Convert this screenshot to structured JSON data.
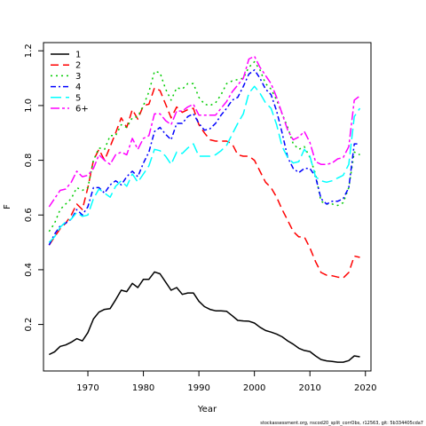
{
  "chart_data": {
    "type": "line",
    "xlabel": "Year",
    "ylabel": "F",
    "xlim": [
      1962,
      2021
    ],
    "ylim": [
      0.03,
      1.23
    ],
    "x_ticks": [
      1970,
      1980,
      1990,
      2000,
      2010,
      2020
    ],
    "y_ticks": [
      0.2,
      0.4,
      0.6,
      0.8,
      1.0,
      1.2
    ],
    "y_tick_labels": [
      "0.2",
      "0.4",
      "0.6",
      "0.8",
      "1.0",
      "1.2"
    ],
    "legend_position": "top-left",
    "footnote": "stockassessment.org, nscod20_split_corrObs, r12563, git: 5b334405cda7",
    "x": [
      1963,
      1964,
      1965,
      1966,
      1967,
      1968,
      1969,
      1970,
      1971,
      1972,
      1973,
      1974,
      1975,
      1976,
      1977,
      1978,
      1979,
      1980,
      1981,
      1982,
      1983,
      1984,
      1985,
      1986,
      1987,
      1988,
      1989,
      1990,
      1991,
      1992,
      1993,
      1994,
      1995,
      1996,
      1997,
      1998,
      1999,
      2000,
      2001,
      2002,
      2003,
      2004,
      2005,
      2006,
      2007,
      2008,
      2009,
      2010,
      2011,
      2012,
      2013,
      2014,
      2015,
      2016,
      2017,
      2018,
      2019
    ],
    "series": [
      {
        "name": "1",
        "color": "#000000",
        "dash": "solid",
        "values": [
          0.09,
          0.1,
          0.12,
          0.125,
          0.135,
          0.148,
          0.14,
          0.17,
          0.22,
          0.245,
          0.255,
          0.258,
          0.29,
          0.325,
          0.32,
          0.35,
          0.335,
          0.365,
          0.365,
          0.392,
          0.385,
          0.355,
          0.325,
          0.335,
          0.31,
          0.315,
          0.315,
          0.285,
          0.265,
          0.255,
          0.25,
          0.25,
          0.248,
          0.232,
          0.215,
          0.213,
          0.212,
          0.205,
          0.19,
          0.178,
          0.172,
          0.165,
          0.155,
          0.14,
          0.128,
          0.113,
          0.105,
          0.101,
          0.085,
          0.072,
          0.067,
          0.065,
          0.062,
          0.062,
          0.068,
          0.085,
          0.082
        ]
      },
      {
        "name": "2",
        "color": "#ff0000",
        "dash": "9,5",
        "values": [
          0.49,
          0.52,
          0.55,
          0.57,
          0.6,
          0.64,
          0.62,
          0.7,
          0.8,
          0.84,
          0.8,
          0.85,
          0.9,
          0.955,
          0.92,
          0.985,
          0.95,
          1.0,
          1.005,
          1.065,
          1.055,
          1.005,
          0.955,
          0.995,
          0.975,
          0.985,
          0.99,
          0.93,
          0.9,
          0.875,
          0.87,
          0.87,
          0.87,
          0.86,
          0.82,
          0.815,
          0.815,
          0.8,
          0.76,
          0.72,
          0.7,
          0.665,
          0.62,
          0.58,
          0.54,
          0.52,
          0.52,
          0.48,
          0.43,
          0.39,
          0.38,
          0.378,
          0.373,
          0.37,
          0.39,
          0.45,
          0.445
        ]
      },
      {
        "name": "3",
        "color": "#00cc00",
        "dash": "2,4",
        "values": [
          0.54,
          0.57,
          0.62,
          0.64,
          0.66,
          0.7,
          0.69,
          0.7,
          0.8,
          0.845,
          0.84,
          0.89,
          0.89,
          0.93,
          0.92,
          0.955,
          0.96,
          1.0,
          1.05,
          1.125,
          1.12,
          1.06,
          1.02,
          1.065,
          1.06,
          1.08,
          1.08,
          1.03,
          1.005,
          1.0,
          1.01,
          1.04,
          1.08,
          1.09,
          1.095,
          1.1,
          1.14,
          1.16,
          1.13,
          1.08,
          1.06,
          1.02,
          0.97,
          0.92,
          0.86,
          0.84,
          0.85,
          0.81,
          0.75,
          0.65,
          0.64,
          0.64,
          0.635,
          0.645,
          0.7,
          0.83,
          0.82
        ]
      },
      {
        "name": "4",
        "color": "#0000ff",
        "dash": "6,3,2,3",
        "values": [
          0.49,
          0.53,
          0.56,
          0.57,
          0.585,
          0.62,
          0.6,
          0.63,
          0.7,
          0.7,
          0.68,
          0.71,
          0.725,
          0.71,
          0.74,
          0.76,
          0.74,
          0.79,
          0.83,
          0.905,
          0.92,
          0.895,
          0.875,
          0.935,
          0.935,
          0.96,
          0.97,
          0.935,
          0.91,
          0.915,
          0.935,
          0.965,
          0.99,
          1.02,
          1.03,
          1.07,
          1.115,
          1.13,
          1.1,
          1.06,
          1.04,
          0.98,
          0.9,
          0.81,
          0.77,
          0.755,
          0.77,
          0.77,
          0.74,
          0.66,
          0.64,
          0.65,
          0.65,
          0.66,
          0.7,
          0.86,
          0.86
        ]
      },
      {
        "name": "5",
        "color": "#00ffff",
        "dash": "12,5",
        "values": [
          0.5,
          0.52,
          0.555,
          0.575,
          0.585,
          0.61,
          0.595,
          0.6,
          0.66,
          0.695,
          0.68,
          0.665,
          0.705,
          0.725,
          0.705,
          0.75,
          0.72,
          0.75,
          0.78,
          0.84,
          0.835,
          0.815,
          0.785,
          0.83,
          0.825,
          0.845,
          0.86,
          0.815,
          0.815,
          0.815,
          0.82,
          0.835,
          0.855,
          0.895,
          0.935,
          0.97,
          1.045,
          1.07,
          1.045,
          1.01,
          0.99,
          0.93,
          0.85,
          0.81,
          0.79,
          0.795,
          0.84,
          0.815,
          0.74,
          0.725,
          0.72,
          0.725,
          0.735,
          0.745,
          0.785,
          0.96,
          0.99
        ]
      },
      {
        "name": "6+",
        "color": "#ff00ff",
        "dash": "10,3,3,3",
        "values": [
          0.63,
          0.66,
          0.69,
          0.695,
          0.72,
          0.76,
          0.74,
          0.745,
          0.77,
          0.82,
          0.8,
          0.785,
          0.82,
          0.83,
          0.82,
          0.88,
          0.84,
          0.88,
          0.89,
          0.97,
          0.97,
          0.945,
          0.93,
          0.98,
          0.98,
          0.995,
          1.005,
          0.965,
          0.965,
          0.965,
          0.965,
          0.99,
          1.015,
          1.05,
          1.075,
          1.1,
          1.17,
          1.18,
          1.14,
          1.11,
          1.08,
          1.03,
          0.97,
          0.91,
          0.875,
          0.885,
          0.905,
          0.865,
          0.795,
          0.785,
          0.785,
          0.79,
          0.805,
          0.81,
          0.85,
          1.02,
          1.035
        ]
      }
    ]
  }
}
